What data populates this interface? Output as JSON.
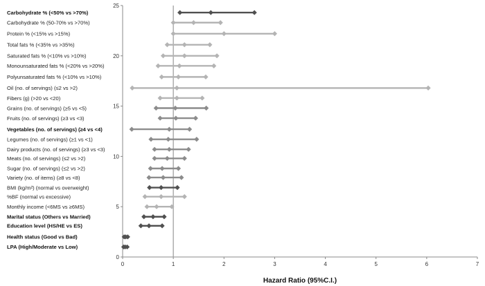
{
  "chart_data": {
    "type": "forest",
    "xlabel": "Hazard Ratio (95%C.I.)",
    "xlim": [
      0,
      7
    ],
    "ylim": [
      0,
      25
    ],
    "x_ticks": [
      0,
      1,
      2,
      3,
      4,
      5,
      6,
      7
    ],
    "y_ticks": [
      0,
      5,
      10,
      15,
      20,
      25
    ],
    "reference_line_x": 1,
    "colors": {
      "dark": "#505050",
      "mid": "#8c8c8c",
      "light": "#b4b4b4",
      "refline": "#9a9a9a"
    },
    "series": [
      {
        "label": "Carbohydrate % (<50% vs >70%)",
        "bold": true,
        "y": 24.3,
        "hr": 1.74,
        "lower": 1.13,
        "upper": 2.6,
        "shade": "dark"
      },
      {
        "label": "Carbohydrate % (50-70% vs >70%)",
        "bold": false,
        "y": 23.3,
        "hr": 1.4,
        "lower": 1.0,
        "upper": 1.93,
        "shade": "light"
      },
      {
        "label": "Protein % (<15% vs >15%)",
        "bold": false,
        "y": 22.2,
        "hr": 2.0,
        "lower": 1.0,
        "upper": 3.0,
        "shade": "light"
      },
      {
        "label": "Total fats % (<35% vs >35%)",
        "bold": false,
        "y": 21.1,
        "hr": 1.22,
        "lower": 0.88,
        "upper": 1.72,
        "shade": "light"
      },
      {
        "label": "Saturated fats % (<10% vs >10%)",
        "bold": false,
        "y": 20.0,
        "hr": 1.22,
        "lower": 0.8,
        "upper": 1.86,
        "shade": "light"
      },
      {
        "label": "Monounsaturated fats % (<20% vs >20%)",
        "bold": false,
        "y": 19.0,
        "hr": 1.12,
        "lower": 0.7,
        "upper": 1.8,
        "shade": "light"
      },
      {
        "label": "Polyunsaturated fats % (<10% vs >10%)",
        "bold": false,
        "y": 17.9,
        "hr": 1.1,
        "lower": 0.77,
        "upper": 1.64,
        "shade": "light"
      },
      {
        "label": "Oil (no. of servings) (≤2 vs >2)",
        "bold": false,
        "y": 16.8,
        "hr": 1.07,
        "lower": 0.19,
        "upper": 6.03,
        "shade": "light"
      },
      {
        "label": "Fibers (g) (>20 vs <20)",
        "bold": false,
        "y": 15.8,
        "hr": 1.07,
        "lower": 0.74,
        "upper": 1.57,
        "shade": "light"
      },
      {
        "label": "Grains (no. of servings) (≥5 vs <5)",
        "bold": false,
        "y": 14.8,
        "hr": 1.04,
        "lower": 0.66,
        "upper": 1.65,
        "shade": "mid"
      },
      {
        "label": "Fruits (no. of servings) (≥3 vs <3)",
        "bold": false,
        "y": 13.8,
        "hr": 1.05,
        "lower": 0.74,
        "upper": 1.44,
        "shade": "mid"
      },
      {
        "label": "Vegetables (no. of servings) (≥4 vs <4)",
        "bold": true,
        "y": 12.7,
        "hr": 0.92,
        "lower": 0.18,
        "upper": 1.32,
        "shade": "mid"
      },
      {
        "label": "Legumes (no. of servings) (≥1 vs <1)",
        "bold": false,
        "y": 11.7,
        "hr": 0.9,
        "lower": 0.56,
        "upper": 1.46,
        "shade": "mid"
      },
      {
        "label": "Dairy products (no. of servings) (≥3 vs <3)",
        "bold": false,
        "y": 10.7,
        "hr": 0.92,
        "lower": 0.63,
        "upper": 1.3,
        "shade": "mid"
      },
      {
        "label": "Meats (no. of servings) (≤2 vs >2)",
        "bold": false,
        "y": 9.8,
        "hr": 0.88,
        "lower": 0.63,
        "upper": 1.22,
        "shade": "mid"
      },
      {
        "label": "Sugar (no. of servings) (≤2 vs >2)",
        "bold": false,
        "y": 8.8,
        "hr": 0.78,
        "lower": 0.55,
        "upper": 1.1,
        "shade": "mid"
      },
      {
        "label": "Variety (no. of items) (≥8 vs <8)",
        "bold": false,
        "y": 7.9,
        "hr": 0.8,
        "lower": 0.52,
        "upper": 1.16,
        "shade": "mid"
      },
      {
        "label": "BMI (kg/m²) (normal vs overweight)",
        "bold": false,
        "y": 6.9,
        "hr": 0.76,
        "lower": 0.53,
        "upper": 1.08,
        "shade": "dark"
      },
      {
        "label": "%BF (normal vs excessive)",
        "bold": false,
        "y": 6.0,
        "hr": 0.76,
        "lower": 0.44,
        "upper": 1.22,
        "shade": "light"
      },
      {
        "label": "Monthly income (<6MS vs ≥6MS)",
        "bold": false,
        "y": 5.0,
        "hr": 0.67,
        "lower": 0.48,
        "upper": 0.97,
        "shade": "light"
      },
      {
        "label": "Marital status (Others vs Married)",
        "bold": true,
        "y": 4.0,
        "hr": 0.6,
        "lower": 0.42,
        "upper": 0.82,
        "shade": "dark"
      },
      {
        "label": "Education level (HS/HE vs ES)",
        "bold": true,
        "y": 3.1,
        "hr": 0.52,
        "lower": 0.36,
        "upper": 0.78,
        "shade": "dark"
      },
      {
        "label": "Health status (Good vs Bad)",
        "bold": true,
        "y": 2.0,
        "hr": 0.06,
        "lower": 0.03,
        "upper": 0.1,
        "shade": "dark"
      },
      {
        "label": "LPA (High/Moderate vs Low)",
        "bold": true,
        "y": 1.0,
        "hr": 0.05,
        "lower": 0.02,
        "upper": 0.09,
        "shade": "dark"
      }
    ]
  }
}
